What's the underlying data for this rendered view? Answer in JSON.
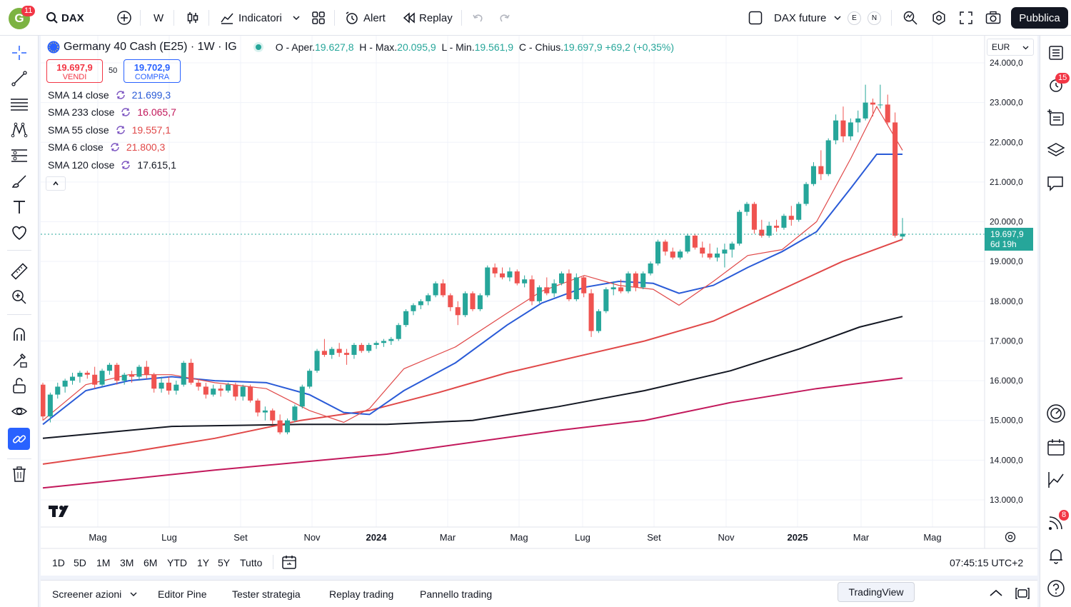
{
  "topbar": {
    "symbol": "DAX",
    "interval": "W",
    "indicators_label": "Indicatori",
    "alert_label": "Alert",
    "replay_label": "Replay",
    "compare_label": "DAX future",
    "compare_e": "E",
    "compare_n": "N",
    "publish_label": "Pubblica",
    "avatar_letter": "G",
    "avatar_badge": "11"
  },
  "legend": {
    "title": "Germany 40 Cash (E25) · 1W · IG",
    "o_label": "O - Aper.",
    "o_value": "19.627,8",
    "h_label": "H - Max.",
    "h_value": "20.095,9",
    "l_label": "L - Min.",
    "l_value": "19.561,9",
    "c_label": "C - Chius.",
    "c_value": "19.697,9",
    "change": "+69,2 (+0,35%)",
    "sell_price": "19.697,9",
    "sell_label": "VENDI",
    "spread": "50",
    "buy_price": "19.702,9",
    "buy_label": "COMPRA",
    "indicators": [
      {
        "name": "SMA 14 close",
        "value": "21.699,3",
        "color": "#2a5bd7"
      },
      {
        "name": "SMA 233 close",
        "value": "16.065,7",
        "color": "#c2185b"
      },
      {
        "name": "SMA 55 close",
        "value": "19.557,1",
        "color": "#e04848"
      },
      {
        "name": "SMA 6 close",
        "value": "21.800,3",
        "color": "#e04848"
      },
      {
        "name": "SMA 120 close",
        "value": "17.615,1",
        "color": "#131722"
      }
    ]
  },
  "price_axis": {
    "currency": "EUR",
    "ticks": [
      "24.000,0",
      "23.000,0",
      "22.000,0",
      "21.000,0",
      "20.000,0",
      "19.000,0",
      "18.000,0",
      "17.000,0",
      "16.000,0",
      "15.000,0",
      "14.000,0",
      "13.000,0"
    ],
    "last_price": "19.697,9",
    "countdown": "6d 19h"
  },
  "time_axis": {
    "labels": [
      "Mag",
      "Lug",
      "Set",
      "Nov",
      "2024",
      "Mar",
      "Mag",
      "Lug",
      "Set",
      "Nov",
      "2025",
      "Mar",
      "Mag"
    ]
  },
  "ranges": [
    "1D",
    "5D",
    "1M",
    "3M",
    "6M",
    "YTD",
    "1Y",
    "5Y",
    "Tutto"
  ],
  "clock": "07:45:15 UTC+2",
  "bottombar": {
    "items": [
      "Screener azioni",
      "Editor Pine",
      "Tester strategia",
      "Replay trading",
      "Pannello trading"
    ],
    "tooltip": "TradingView"
  },
  "right_badges": {
    "alerts": "15",
    "news": "8"
  },
  "colors": {
    "up": "#26a69a",
    "down": "#ef5350",
    "sma14": "#2a5bd7",
    "sma6": "#e04848",
    "sma55": "#e04848",
    "sma120": "#131722",
    "sma233": "#c2185b",
    "accent": "#2962ff"
  },
  "chart_data": {
    "type": "candlestick",
    "title": "Germany 40 Cash (E25) · 1W · IG",
    "ylim": [
      12500,
      24400
    ],
    "candles_ohlc": [
      [
        15900,
        15950,
        15000,
        15100
      ],
      [
        15100,
        15700,
        14950,
        15650
      ],
      [
        15650,
        15950,
        15550,
        15850
      ],
      [
        15850,
        16050,
        15700,
        16000
      ],
      [
        16000,
        16200,
        15900,
        16100
      ],
      [
        16100,
        16250,
        15950,
        16200
      ],
      [
        16200,
        16250,
        16050,
        16150
      ],
      [
        16150,
        16350,
        15800,
        15900
      ],
      [
        15900,
        16300,
        15850,
        16250
      ],
      [
        16250,
        16450,
        16150,
        16400
      ],
      [
        16400,
        16450,
        15900,
        16000
      ],
      [
        16000,
        16200,
        15900,
        16150
      ],
      [
        16150,
        16250,
        15950,
        16100
      ],
      [
        16100,
        16400,
        16000,
        16350
      ],
      [
        16350,
        16500,
        16050,
        16150
      ],
      [
        16150,
        16200,
        15700,
        15800
      ],
      [
        15800,
        16100,
        15700,
        15950
      ],
      [
        15950,
        16100,
        15650,
        15750
      ],
      [
        15750,
        16000,
        15650,
        15900
      ],
      [
        15900,
        16500,
        15850,
        16450
      ],
      [
        16450,
        16550,
        15900,
        15950
      ],
      [
        15950,
        16050,
        15750,
        15850
      ],
      [
        15850,
        15950,
        15550,
        15650
      ],
      [
        15650,
        15900,
        15600,
        15800
      ],
      [
        15800,
        15900,
        15600,
        15750
      ],
      [
        15750,
        15950,
        15700,
        15900
      ],
      [
        15900,
        15950,
        15500,
        15600
      ],
      [
        15600,
        15900,
        15500,
        15850
      ],
      [
        15850,
        15900,
        15450,
        15500
      ],
      [
        15500,
        15550,
        15100,
        15200
      ],
      [
        15200,
        15350,
        15000,
        15250
      ],
      [
        15250,
        15300,
        14900,
        15000
      ],
      [
        15000,
        15150,
        14650,
        14700
      ],
      [
        14700,
        15050,
        14650,
        15000
      ],
      [
        15000,
        15400,
        14950,
        15350
      ],
      [
        15350,
        15900,
        15300,
        15850
      ],
      [
        15850,
        16300,
        15800,
        16250
      ],
      [
        16250,
        16800,
        16200,
        16750
      ],
      [
        16750,
        17050,
        16600,
        16650
      ],
      [
        16650,
        16850,
        16550,
        16800
      ],
      [
        16800,
        16950,
        16600,
        16700
      ],
      [
        16700,
        16800,
        16400,
        16650
      ],
      [
        16650,
        16950,
        16550,
        16900
      ],
      [
        16900,
        16950,
        16700,
        16750
      ],
      [
        16750,
        16950,
        16700,
        16900
      ],
      [
        16900,
        17000,
        16800,
        16950
      ],
      [
        16950,
        17050,
        16850,
        17000
      ],
      [
        17000,
        17100,
        16900,
        17050
      ],
      [
        17050,
        17450,
        17000,
        17400
      ],
      [
        17400,
        17800,
        17350,
        17750
      ],
      [
        17750,
        17950,
        17650,
        17900
      ],
      [
        17900,
        18050,
        17800,
        18000
      ],
      [
        18000,
        18200,
        17900,
        18150
      ],
      [
        18150,
        18500,
        18100,
        18450
      ],
      [
        18450,
        18550,
        18100,
        18150
      ],
      [
        18150,
        18200,
        17750,
        17850
      ],
      [
        17850,
        18000,
        17400,
        17650
      ],
      [
        17650,
        18250,
        17600,
        18200
      ],
      [
        18200,
        18250,
        17750,
        17800
      ],
      [
        17800,
        18200,
        17750,
        18150
      ],
      [
        18150,
        18900,
        18100,
        18850
      ],
      [
        18850,
        18950,
        18600,
        18700
      ],
      [
        18700,
        18850,
        18550,
        18600
      ],
      [
        18600,
        18850,
        18500,
        18750
      ],
      [
        18750,
        18800,
        18400,
        18450
      ],
      [
        18450,
        18650,
        18350,
        18550
      ],
      [
        18550,
        18650,
        17900,
        18000
      ],
      [
        18000,
        18400,
        17950,
        18350
      ],
      [
        18350,
        18600,
        18150,
        18200
      ],
      [
        18200,
        18550,
        18100,
        18450
      ],
      [
        18450,
        18750,
        18400,
        18700
      ],
      [
        18700,
        18800,
        18000,
        18050
      ],
      [
        18050,
        18700,
        18000,
        18600
      ],
      [
        18600,
        18650,
        18100,
        18200
      ],
      [
        18200,
        18300,
        17100,
        17250
      ],
      [
        17250,
        17800,
        17200,
        17750
      ],
      [
        17750,
        18350,
        17700,
        18300
      ],
      [
        18300,
        18500,
        18150,
        18350
      ],
      [
        18350,
        18550,
        18200,
        18250
      ],
      [
        18250,
        18750,
        18200,
        18700
      ],
      [
        18700,
        18750,
        18250,
        18350
      ],
      [
        18350,
        18750,
        18300,
        18700
      ],
      [
        18700,
        19000,
        18650,
        18950
      ],
      [
        18950,
        19550,
        18900,
        19500
      ],
      [
        19500,
        19550,
        19150,
        19250
      ],
      [
        19250,
        19350,
        19050,
        19100
      ],
      [
        19100,
        19300,
        19050,
        19250
      ],
      [
        19250,
        19700,
        19200,
        19650
      ],
      [
        19650,
        19700,
        19300,
        19350
      ],
      [
        19350,
        19500,
        19100,
        19200
      ],
      [
        19200,
        19450,
        19050,
        19100
      ],
      [
        19100,
        19350,
        19000,
        19200
      ],
      [
        19200,
        19450,
        18850,
        19300
      ],
      [
        19300,
        19500,
        19100,
        19450
      ],
      [
        19450,
        20300,
        19400,
        20250
      ],
      [
        20250,
        20500,
        20150,
        20450
      ],
      [
        20450,
        20500,
        19700,
        19800
      ],
      [
        19800,
        20050,
        19600,
        19650
      ],
      [
        19650,
        20000,
        19600,
        19900
      ],
      [
        19900,
        20050,
        19750,
        19850
      ],
      [
        19850,
        20200,
        19800,
        20150
      ],
      [
        20150,
        20400,
        19900,
        20050
      ],
      [
        20050,
        20500,
        20000,
        20450
      ],
      [
        20450,
        21000,
        20400,
        20950
      ],
      [
        20950,
        21500,
        20900,
        21400
      ],
      [
        21400,
        21800,
        21050,
        21200
      ],
      [
        21200,
        22100,
        21150,
        22050
      ],
      [
        22050,
        22700,
        21950,
        22550
      ],
      [
        22550,
        22900,
        22000,
        22150
      ],
      [
        22150,
        22600,
        22050,
        22500
      ],
      [
        22500,
        22800,
        22250,
        22600
      ],
      [
        22600,
        23450,
        22550,
        23000
      ],
      [
        23000,
        23100,
        22650,
        22950
      ],
      [
        22950,
        23450,
        22850,
        22950
      ],
      [
        22950,
        23200,
        22450,
        22500
      ],
      [
        22500,
        22750,
        19600,
        19650
      ],
      [
        19627.8,
        20095.9,
        19561.9,
        19697.9
      ]
    ],
    "sma": {
      "sma14": [
        [
          0,
          14900
        ],
        [
          0.05,
          15750
        ],
        [
          0.1,
          16000
        ],
        [
          0.15,
          16100
        ],
        [
          0.2,
          16000
        ],
        [
          0.26,
          15950
        ],
        [
          0.31,
          15650
        ],
        [
          0.35,
          15200
        ],
        [
          0.38,
          15150
        ],
        [
          0.42,
          15750
        ],
        [
          0.48,
          16450
        ],
        [
          0.54,
          17400
        ],
        [
          0.58,
          17950
        ],
        [
          0.63,
          18350
        ],
        [
          0.67,
          18500
        ],
        [
          0.71,
          18450
        ],
        [
          0.74,
          18200
        ],
        [
          0.78,
          18400
        ],
        [
          0.82,
          18850
        ],
        [
          0.86,
          19250
        ],
        [
          0.9,
          19750
        ],
        [
          0.94,
          20850
        ],
        [
          0.97,
          21700
        ],
        [
          1,
          21700
        ]
      ],
      "sma6": [
        [
          0,
          15000
        ],
        [
          0.05,
          15900
        ],
        [
          0.1,
          16150
        ],
        [
          0.15,
          16150
        ],
        [
          0.2,
          15950
        ],
        [
          0.26,
          15800
        ],
        [
          0.31,
          15250
        ],
        [
          0.35,
          14950
        ],
        [
          0.38,
          15300
        ],
        [
          0.42,
          16300
        ],
        [
          0.48,
          16850
        ],
        [
          0.54,
          17700
        ],
        [
          0.58,
          18250
        ],
        [
          0.63,
          18650
        ],
        [
          0.67,
          18400
        ],
        [
          0.71,
          18300
        ],
        [
          0.74,
          17900
        ],
        [
          0.78,
          18500
        ],
        [
          0.82,
          19150
        ],
        [
          0.86,
          19300
        ],
        [
          0.9,
          20000
        ],
        [
          0.94,
          21600
        ],
        [
          0.97,
          22900
        ],
        [
          1,
          21800
        ]
      ],
      "sma55": [
        [
          0,
          13900
        ],
        [
          0.1,
          14200
        ],
        [
          0.2,
          14550
        ],
        [
          0.3,
          15000
        ],
        [
          0.38,
          15250
        ],
        [
          0.46,
          15700
        ],
        [
          0.54,
          16200
        ],
        [
          0.62,
          16600
        ],
        [
          0.7,
          17000
        ],
        [
          0.78,
          17500
        ],
        [
          0.86,
          18300
        ],
        [
          0.93,
          19000
        ],
        [
          1,
          19557
        ]
      ],
      "sma120": [
        [
          0,
          14550
        ],
        [
          0.15,
          14850
        ],
        [
          0.3,
          14900
        ],
        [
          0.4,
          14900
        ],
        [
          0.5,
          15000
        ],
        [
          0.6,
          15350
        ],
        [
          0.7,
          15750
        ],
        [
          0.8,
          16250
        ],
        [
          0.88,
          16800
        ],
        [
          0.95,
          17350
        ],
        [
          1,
          17615
        ]
      ],
      "sma233": [
        [
          0,
          13300
        ],
        [
          0.2,
          13750
        ],
        [
          0.4,
          14150
        ],
        [
          0.6,
          14750
        ],
        [
          0.7,
          15000
        ],
        [
          0.8,
          15450
        ],
        [
          0.9,
          15800
        ],
        [
          1,
          16066
        ]
      ]
    }
  }
}
